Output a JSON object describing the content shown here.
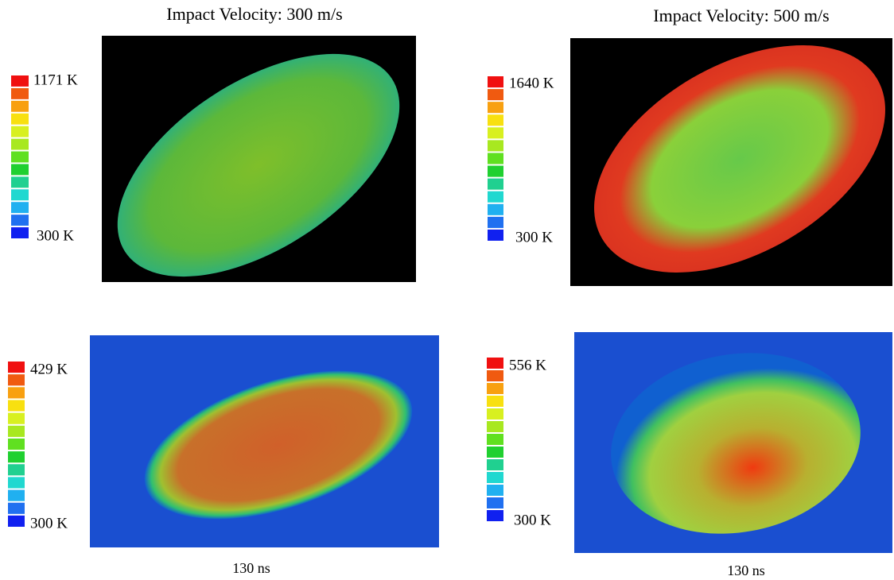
{
  "titles": [
    "Impact Velocity: 300 m/s",
    "Impact Velocity: 500 m/s"
  ],
  "panels": [
    {
      "max_label": "1171 K",
      "min_label": "300 K"
    },
    {
      "max_label": "1640 K",
      "min_label": "300 K"
    },
    {
      "max_label": "429 K",
      "min_label": "300 K"
    },
    {
      "max_label": "556 K",
      "min_label": "300 K"
    }
  ],
  "captions": [
    "130 ns",
    "130 ns"
  ]
}
